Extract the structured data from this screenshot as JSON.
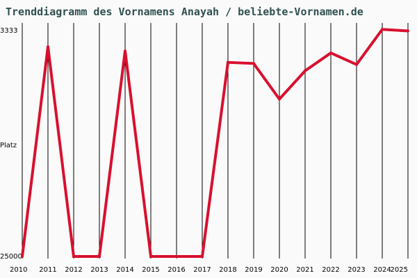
{
  "chart_data": {
    "type": "line",
    "title": "Trenddiagramm des Vornamens Anayah / beliebte-Vornamen.de",
    "ylabel": "Platz",
    "x": [
      "2010",
      "2011",
      "2012",
      "2013",
      "2014",
      "2015",
      "2016",
      "2017",
      "2018",
      "2019",
      "2020",
      "2021",
      "2022",
      "2023",
      "2024",
      "2025"
    ],
    "yticks": [
      "3333",
      "25000"
    ],
    "ylim": [
      3333,
      25000
    ],
    "y_inverted": true,
    "grid": "vertical",
    "series": [
      {
        "values": [
          25000,
          5000,
          25000,
          25000,
          5400,
          25000,
          25000,
          25000,
          6500,
          6600,
          10000,
          7300,
          5600,
          6700,
          3350,
          3500
        ]
      }
    ]
  },
  "colors": {
    "line": "#d8102e",
    "background": "#fafafa",
    "grid": "#000000",
    "title": "#2f4f4f"
  }
}
